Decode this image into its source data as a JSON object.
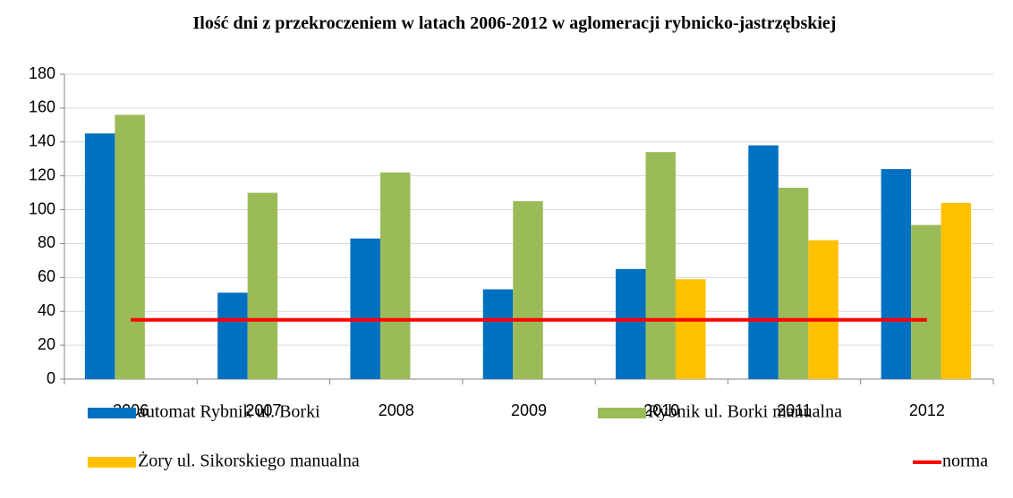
{
  "chart_data": {
    "type": "bar",
    "title": "Ilość dni z przekroczeniem w latach 2006-2012 w aglomeracji rybnicko-jastrzębskiej",
    "categories": [
      "2006",
      "2007",
      "2008",
      "2009",
      "2010",
      "2011",
      "2012"
    ],
    "series": [
      {
        "name": "automat Rybnik ul. Borki",
        "color": "#0070c0",
        "values": [
          145,
          51,
          83,
          53,
          65,
          138,
          124
        ]
      },
      {
        "name": "Rybnik ul. Borki manualna",
        "color": "#9bbb59",
        "values": [
          156,
          110,
          122,
          105,
          134,
          113,
          91
        ]
      },
      {
        "name": "Żory ul. Sikorskiego manualna",
        "color": "#ffc000",
        "values": [
          null,
          null,
          null,
          null,
          59,
          82,
          104
        ]
      },
      {
        "name": "norma",
        "type": "line",
        "color": "#ff0000",
        "values": [
          35,
          35,
          35,
          35,
          35,
          35,
          35
        ]
      }
    ],
    "ylim": [
      0,
      180
    ],
    "yticks": [
      0,
      20,
      40,
      60,
      80,
      100,
      120,
      140,
      160,
      180
    ],
    "grid": true
  }
}
